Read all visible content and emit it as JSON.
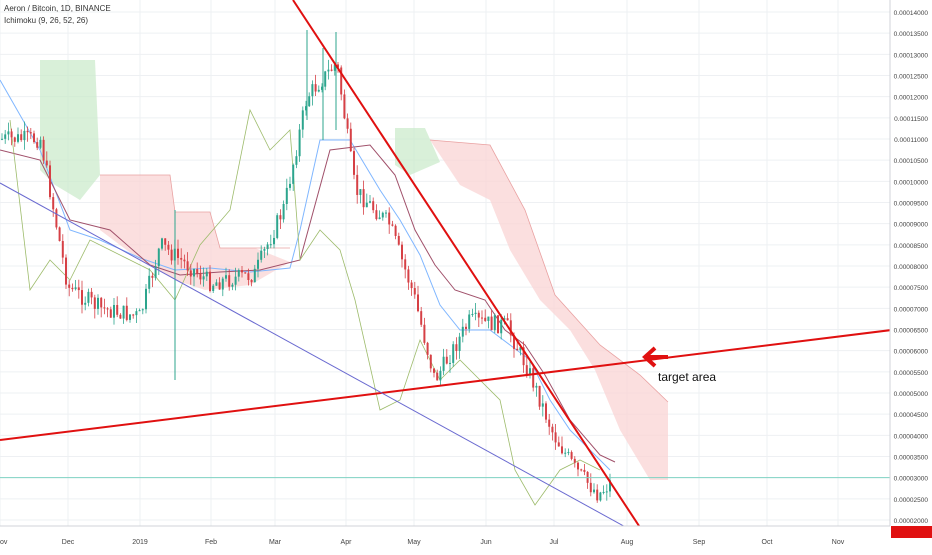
{
  "header": {
    "title": "Aeron / Bitcoin, 1D, BINANCE",
    "indicator": "Ichimoku (9, 26, 52, 26)"
  },
  "annotation": {
    "text": "target area"
  },
  "colors": {
    "background": "#ffffff",
    "grid": "#eef0f3",
    "candle_up": "#2ca58d",
    "candle_down": "#d64045",
    "trendline": "#e01010",
    "lower_trendline": "#6a6ad0",
    "cloud_bull": "#c9e9c9",
    "cloud_bear": "#f9d4d4",
    "tenkan": "#7fb6ff",
    "kijun": "#a0506a",
    "chikou": "#9dbb6b",
    "current_price_line": "#7fd3c3",
    "current_price_tag": "#e01010"
  },
  "chart_data": {
    "type": "candlestick",
    "title": "Aeron / Bitcoin, 1D, BINANCE",
    "indicators": [
      "Ichimoku (9, 26, 52, 26)"
    ],
    "x_tick_labels": [
      "ov",
      "Dec",
      "2019",
      "Feb",
      "Mar",
      "Apr",
      "May",
      "Jun",
      "Jul",
      "Aug",
      "Sep",
      "Oct",
      "Nov"
    ],
    "y_tick_labels": [
      "0.00014000",
      "0.00013500",
      "0.00013000",
      "0.00012500",
      "0.00012000",
      "0.00011500",
      "0.00011000",
      "0.00010500",
      "0.00010000",
      "0.00009500",
      "0.00009000",
      "0.00008500",
      "0.00008000",
      "0.00007500",
      "0.00007000",
      "0.00006500",
      "0.00006000",
      "0.00005500",
      "0.00005000",
      "0.00004500",
      "0.00004000",
      "0.00003500",
      "0.00003000",
      "0.00002500",
      "0.00002000"
    ],
    "ylim": [
      1.8e-05,
      0.000142
    ],
    "price_path": [
      {
        "date": "Nov 20",
        "price": 0.00011
      },
      {
        "date": "Dec 1",
        "price": 7.5e-05
      },
      {
        "date": "Dec 15",
        "price": 7e-05
      },
      {
        "date": "Jan 1",
        "price": 6.8e-05
      },
      {
        "date": "Jan 10",
        "price": 8.5e-05
      },
      {
        "date": "Feb 1",
        "price": 7.6e-05
      },
      {
        "date": "Feb 20",
        "price": 7.8e-05
      },
      {
        "date": "Mar 5",
        "price": 9.4e-05
      },
      {
        "date": "Mar 15",
        "price": 0.00012
      },
      {
        "date": "Mar 28",
        "price": 0.000128
      },
      {
        "date": "Apr 5",
        "price": 9.8e-05
      },
      {
        "date": "Apr 20",
        "price": 9e-05
      },
      {
        "date": "May 1",
        "price": 7.3e-05
      },
      {
        "date": "May 10",
        "price": 5.3e-05
      },
      {
        "date": "May 25",
        "price": 6.7e-05
      },
      {
        "date": "Jun 10",
        "price": 6.6e-05
      },
      {
        "date": "Jun 20",
        "price": 5.5e-05
      },
      {
        "date": "Jul 1",
        "price": 4e-05
      },
      {
        "date": "Jul 10",
        "price": 3.2e-05
      },
      {
        "date": "Jul 20",
        "price": 2.6e-05
      },
      {
        "date": "Jul 27",
        "price": 3e-05
      }
    ],
    "trendlines": [
      {
        "label": "descending resistance",
        "from": {
          "date": "Nov 1",
          "price": 0.000158
        },
        "to": {
          "date": "Jul 31",
          "price": 1.6e-05
        }
      },
      {
        "label": "rising support",
        "from": {
          "date": "Nov 1",
          "price": 3.9e-05
        },
        "to": {
          "date": "Dec 31",
          "price": 6.4e-05
        }
      },
      {
        "label": "lower channel",
        "from": {
          "date": "Nov 1",
          "price": 0.0001
        },
        "to": {
          "date": "Jul 31",
          "price": 1.6e-05
        }
      }
    ],
    "current_price": 3e-05,
    "grid": true,
    "legend": "top-left"
  }
}
